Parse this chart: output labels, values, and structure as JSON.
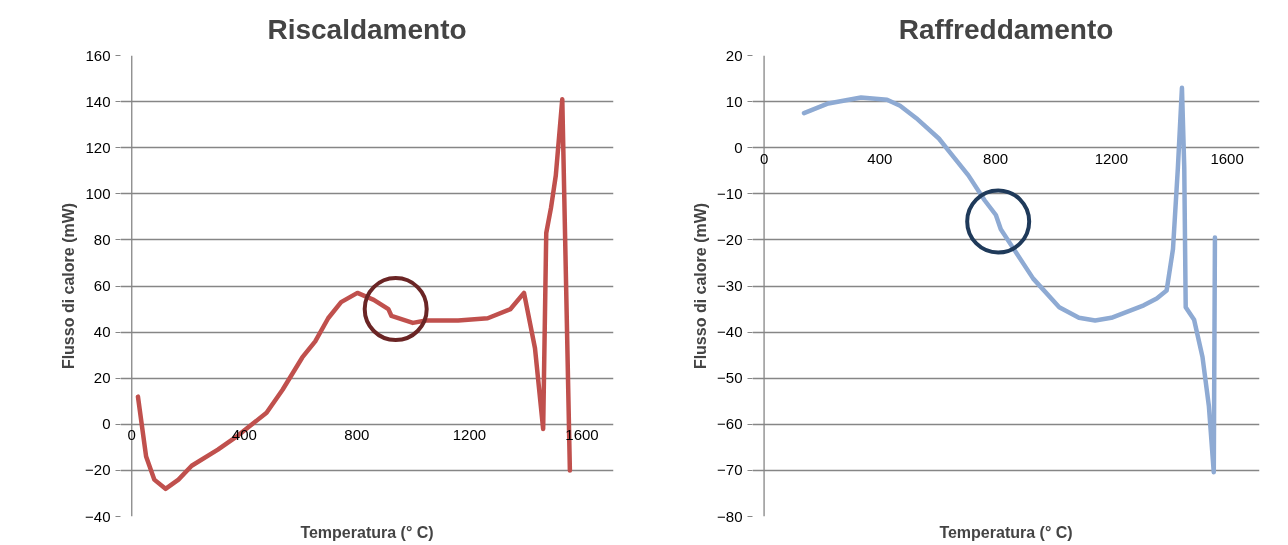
{
  "chart_data": [
    {
      "type": "line",
      "title": "Riscaldamento",
      "xlabel": "Temperatura (° C)",
      "ylabel": "Flusso di calore (mW)",
      "xlim": [
        0,
        1600
      ],
      "xticks": [
        0,
        400,
        800,
        1200,
        1600
      ],
      "ylim": [
        -40,
        160
      ],
      "yticks": [
        -40,
        -20,
        0,
        20,
        40,
        60,
        80,
        100,
        120,
        140,
        160
      ],
      "grid": "y",
      "series": [
        {
          "color": "#c0504d",
          "x": [
            22,
            51,
            80,
            120,
            166,
            213,
            306,
            376,
            479,
            536,
            606,
            652,
            698,
            744,
            802,
            860,
            912,
            923,
            999,
            1045,
            1160,
            1265,
            1346,
            1394,
            1433,
            1462,
            1473,
            1490,
            1507,
            1530,
            1557
          ],
          "values": [
            12,
            -14,
            -24,
            -28,
            -24,
            -18,
            -11,
            -5,
            5,
            15,
            29,
            36,
            46,
            53,
            57,
            54,
            50,
            47,
            44,
            45,
            45,
            46,
            50,
            57,
            33,
            -2,
            83,
            94,
            108,
            141,
            -20
          ]
        },
        {
          "type": "scatter",
          "marker": "circle",
          "color": "#6b2525",
          "x": [
            938
          ],
          "values": [
            50
          ]
        }
      ]
    },
    {
      "type": "line",
      "title": "Raffreddamento",
      "xlabel": "Temperatura (° C)",
      "ylabel": "Flusso di calore (mW)",
      "xlim": [
        0,
        1600
      ],
      "xticks": [
        0,
        400,
        800,
        1200,
        1600
      ],
      "ylim": [
        -80,
        20
      ],
      "yticks": [
        -80,
        -70,
        -60,
        -50,
        -40,
        -30,
        -20,
        -10,
        0,
        10,
        20
      ],
      "grid": "y",
      "series": [
        {
          "color": "#8eaad3",
          "x": [
            138,
            222,
            335,
            425,
            470,
            526,
            604,
            638,
            706,
            762,
            801,
            818,
            863,
            930,
            1020,
            1088,
            1144,
            1200,
            1312,
            1357,
            1391,
            1413,
            1430,
            1444,
            1452,
            1457,
            1486,
            1515,
            1537,
            1554,
            1558
          ],
          "values": [
            7.5,
            9.6,
            10.9,
            10.4,
            9.1,
            6.4,
            2,
            -0.7,
            -6,
            -11.4,
            -14.6,
            -17.7,
            -22,
            -28.4,
            -34.6,
            -36.9,
            -37.5,
            -36.9,
            -34.2,
            -32.7,
            -31,
            -22,
            -4.3,
            13,
            -4.3,
            -34.6,
            -37.3,
            -45.4,
            -56,
            -70.4,
            -19.5
          ]
        },
        {
          "type": "scatter",
          "marker": "circle",
          "color": "#1f3a5a",
          "x": [
            809
          ],
          "values": [
            -16
          ]
        }
      ]
    }
  ]
}
